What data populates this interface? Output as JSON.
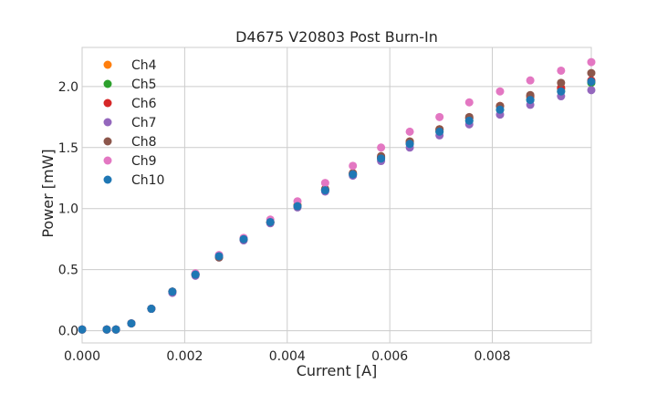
{
  "chart_data": {
    "type": "scatter",
    "title": "D4675 V20803 Post Burn-In",
    "xlabel": "Current [A]",
    "ylabel": "Power [mW]",
    "xlim": [
      0,
      0.00993
    ],
    "ylim": [
      -0.1,
      2.32
    ],
    "xticks": [
      0,
      0.002,
      0.004,
      0.006,
      0.008
    ],
    "xtick_labels": [
      "0.000",
      "0.002",
      "0.004",
      "0.006",
      "0.008"
    ],
    "yticks": [
      0,
      0.5,
      1.0,
      1.5,
      2.0
    ],
    "ytick_labels": [
      "0.0",
      "0.5",
      "1.0",
      "1.5",
      "2.0"
    ],
    "grid": true,
    "legend_position": "top-left",
    "x": [
      0,
      0.00048,
      0.00066,
      0.00096,
      0.00135,
      0.00176,
      0.00221,
      0.00267,
      0.00315,
      0.00367,
      0.0042,
      0.00474,
      0.00528,
      0.00583,
      0.00639,
      0.00697,
      0.00755,
      0.00815,
      0.00874,
      0.00934,
      0.00993
    ],
    "series": [
      {
        "name": "Ch4",
        "color": "#ff7f0e",
        "values": [
          0.01,
          0.01,
          0.01,
          0.06,
          0.18,
          0.32,
          0.46,
          0.61,
          0.75,
          0.89,
          1.03,
          1.16,
          1.29,
          1.42,
          1.55,
          1.65,
          1.74,
          1.84,
          1.91,
          1.98,
          2.04
        ]
      },
      {
        "name": "Ch5",
        "color": "#2ca02c",
        "values": [
          0.01,
          0.01,
          0.01,
          0.06,
          0.18,
          0.32,
          0.46,
          0.61,
          0.75,
          0.89,
          1.02,
          1.15,
          1.28,
          1.41,
          1.53,
          1.63,
          1.72,
          1.81,
          1.89,
          1.96,
          2.03
        ]
      },
      {
        "name": "Ch6",
        "color": "#d62728",
        "values": [
          0.01,
          0.01,
          0.01,
          0.06,
          0.18,
          0.32,
          0.46,
          0.61,
          0.75,
          0.89,
          1.02,
          1.15,
          1.29,
          1.42,
          1.54,
          1.64,
          1.74,
          1.84,
          1.92,
          1.99,
          2.05
        ]
      },
      {
        "name": "Ch7",
        "color": "#9467bd",
        "values": [
          0.01,
          0.01,
          0.01,
          0.06,
          0.18,
          0.31,
          0.45,
          0.6,
          0.74,
          0.88,
          1.01,
          1.14,
          1.27,
          1.39,
          1.5,
          1.6,
          1.69,
          1.77,
          1.85,
          1.92,
          1.97
        ]
      },
      {
        "name": "Ch8",
        "color": "#8c564b",
        "values": [
          0.01,
          0.01,
          0.01,
          0.06,
          0.18,
          0.32,
          0.46,
          0.6,
          0.75,
          0.89,
          1.02,
          1.16,
          1.29,
          1.43,
          1.55,
          1.65,
          1.75,
          1.84,
          1.93,
          2.03,
          2.11
        ]
      },
      {
        "name": "Ch9",
        "color": "#e377c2",
        "values": [
          0.01,
          0.01,
          0.01,
          0.06,
          0.18,
          0.32,
          0.47,
          0.62,
          0.76,
          0.91,
          1.06,
          1.21,
          1.35,
          1.5,
          1.63,
          1.75,
          1.87,
          1.96,
          2.05,
          2.13,
          2.2
        ]
      },
      {
        "name": "Ch10",
        "color": "#1f77b4",
        "values": [
          0.01,
          0.01,
          0.01,
          0.06,
          0.18,
          0.32,
          0.46,
          0.61,
          0.75,
          0.89,
          1.02,
          1.15,
          1.28,
          1.41,
          1.53,
          1.63,
          1.72,
          1.81,
          1.89,
          1.96,
          2.04
        ]
      }
    ]
  }
}
